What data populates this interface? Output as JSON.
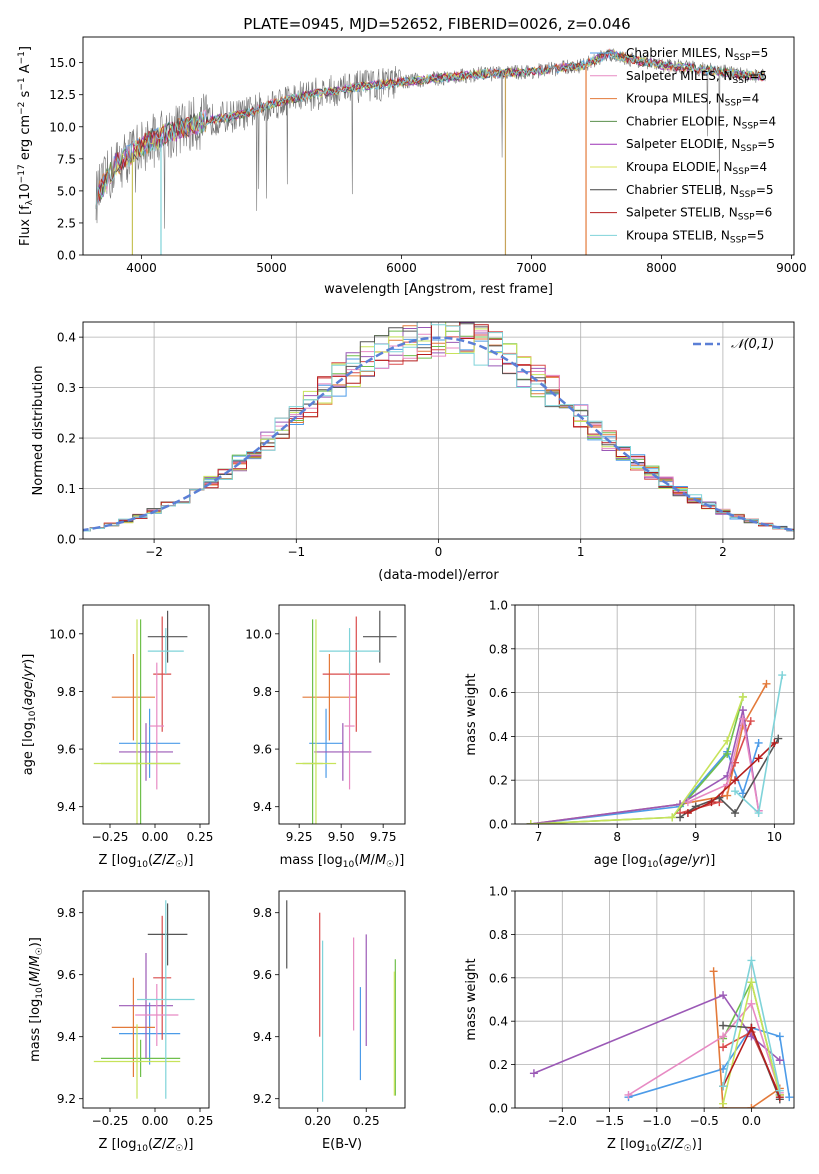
{
  "figure": {
    "title": "PLATE=0945, MJD=52652, FIBERID=0026, z=0.046"
  },
  "series_colors": [
    "#4c9be8",
    "#e37a3a",
    "#6fbf4c",
    "#d94b4b",
    "#9b59b6",
    "#e78ac3",
    "#c7e35a",
    "#555555",
    "#b51d1d",
    "#7fd3d9"
  ],
  "chart_data": [
    {
      "id": "spectrum",
      "type": "line",
      "xlabel": "wavelength [Angstrom, rest frame]",
      "ylabel": "Flux [f_λ 10^-17 erg cm^-2 s^-1 A^-1]",
      "xlim": [
        3550,
        9020
      ],
      "ylim": [
        0,
        17
      ],
      "xticks": [
        4000,
        5000,
        6000,
        7000,
        8000,
        9000
      ],
      "yticks": [
        0.0,
        2.5,
        5.0,
        7.5,
        10.0,
        12.5,
        15.0
      ],
      "legend_position": "right",
      "series": [
        {
          "name": "Chabrier MILES, N_SSP=5",
          "color": "#4c9be8"
        },
        {
          "name": "Salpeter MILES, N_SSP=5",
          "color": "#e78ac3"
        },
        {
          "name": "Kroupa MILES, N_SSP=4",
          "color": "#e37a3a"
        },
        {
          "name": "Chabrier ELODIE, N_SSP=4",
          "color": "#5a8f4c"
        },
        {
          "name": "Salpeter ELODIE, N_SSP=5",
          "color": "#9b30b6"
        },
        {
          "name": "Kroupa ELODIE, N_SSP=4",
          "color": "#d8e35a"
        },
        {
          "name": "Chabrier STELIB, N_SSP=5",
          "color": "#444444"
        },
        {
          "name": "Salpeter STELIB, N_SSP=6",
          "color": "#b51d1d"
        },
        {
          "name": "Kroupa STELIB, N_SSP=5",
          "color": "#7fd3d9"
        }
      ],
      "continuum": {
        "x": [
          3650,
          3800,
          4000,
          4200,
          4500,
          4800,
          5000,
          5300,
          5600,
          6000,
          6300,
          6600,
          7000,
          7400,
          7600,
          7800,
          8000,
          8300,
          8600,
          8800
        ],
        "y": [
          4.5,
          7.0,
          8.5,
          9.5,
          10.5,
          11.0,
          11.8,
          12.5,
          13.0,
          13.5,
          13.8,
          14.1,
          14.3,
          14.8,
          15.7,
          15.2,
          14.8,
          14.5,
          14.1,
          13.9
        ]
      }
    },
    {
      "id": "residuals",
      "type": "histogram",
      "xlabel": "(data-model)/error",
      "ylabel": "Normed distribution",
      "xlim": [
        -2.5,
        2.5
      ],
      "ylim": [
        0,
        0.43
      ],
      "xticks": [
        -2,
        -1,
        0,
        1,
        2
      ],
      "yticks": [
        0.0,
        0.1,
        0.2,
        0.3,
        0.4
      ],
      "legend": "𝒩(0,1)",
      "gaussian_color": "#5b7fd6",
      "grid": true
    },
    {
      "id": "age_vs_Z",
      "type": "errorbar",
      "xlabel": "Z [log10(Z/Z☉)]",
      "ylabel": "age  [log10(age/yr)]",
      "xlim": [
        -0.4,
        0.3
      ],
      "ylim": [
        9.34,
        10.1
      ],
      "xticks": [
        -0.25,
        0.0,
        0.25
      ],
      "yticks": [
        9.4,
        9.6,
        9.8,
        10.0
      ],
      "points": [
        {
          "x": -0.03,
          "y": 9.62,
          "xerr": 0.17,
          "yerr": 0.12,
          "color": "#4c9be8"
        },
        {
          "x": -0.12,
          "y": 9.78,
          "xerr": 0.12,
          "yerr": 0.15,
          "color": "#e37a3a"
        },
        {
          "x": -0.08,
          "y": 9.55,
          "xerr": 0.22,
          "yerr": 0.5,
          "color": "#6fbf4c"
        },
        {
          "x": 0.04,
          "y": 9.86,
          "xerr": 0.05,
          "yerr": 0.2,
          "color": "#d94b4b"
        },
        {
          "x": -0.05,
          "y": 9.59,
          "xerr": 0.15,
          "yerr": 0.1,
          "color": "#9b59b6"
        },
        {
          "x": 0.01,
          "y": 9.68,
          "xerr": 0.04,
          "yerr": 0.22,
          "color": "#e78ac3"
        },
        {
          "x": -0.1,
          "y": 9.55,
          "xerr": 0.24,
          "yerr": 0.5,
          "color": "#c7e35a"
        },
        {
          "x": 0.07,
          "y": 9.99,
          "xerr": 0.11,
          "yerr": 0.09,
          "color": "#555555"
        },
        {
          "x": 0.06,
          "y": 9.94,
          "xerr": 0.1,
          "yerr": 0.08,
          "color": "#7fd3d9"
        }
      ]
    },
    {
      "id": "age_vs_mass",
      "type": "errorbar",
      "xlabel": "mass [log10(M/M☉)]",
      "ylabel": "",
      "xlim": [
        9.13,
        9.88
      ],
      "ylim": [
        9.34,
        10.1
      ],
      "xticks": [
        9.25,
        9.5,
        9.75
      ],
      "yticks": [
        9.4,
        9.6,
        9.8,
        10.0
      ],
      "points": [
        {
          "x": 9.41,
          "y": 9.62,
          "xerr": 0.1,
          "yerr": 0.12,
          "color": "#4c9be8"
        },
        {
          "x": 9.43,
          "y": 9.78,
          "xerr": 0.16,
          "yerr": 0.15,
          "color": "#e37a3a"
        },
        {
          "x": 9.33,
          "y": 9.55,
          "xerr": 0.06,
          "yerr": 0.5,
          "color": "#6fbf4c"
        },
        {
          "x": 9.59,
          "y": 9.86,
          "xerr": 0.2,
          "yerr": 0.2,
          "color": "#d94b4b"
        },
        {
          "x": 9.51,
          "y": 9.59,
          "xerr": 0.17,
          "yerr": 0.1,
          "color": "#9b59b6"
        },
        {
          "x": 9.55,
          "y": 9.68,
          "xerr": 0.03,
          "yerr": 0.22,
          "color": "#e78ac3"
        },
        {
          "x": 9.35,
          "y": 9.55,
          "xerr": 0.12,
          "yerr": 0.5,
          "color": "#c7e35a"
        },
        {
          "x": 9.73,
          "y": 9.99,
          "xerr": 0.1,
          "yerr": 0.09,
          "color": "#555555"
        },
        {
          "x": 9.55,
          "y": 9.94,
          "xerr": 0.18,
          "yerr": 0.08,
          "color": "#7fd3d9"
        }
      ]
    },
    {
      "id": "weight_vs_age",
      "type": "line",
      "xlabel": "age  [log10(age/yr)]",
      "ylabel": "mass weight",
      "xlim": [
        6.7,
        10.25
      ],
      "ylim": [
        0,
        1.0
      ],
      "xticks": [
        7,
        8,
        9,
        10
      ],
      "yticks": [
        0.0,
        0.2,
        0.4,
        0.6,
        0.8,
        1.0
      ],
      "series": [
        {
          "color": "#4c9be8",
          "x": [
            6.9,
            8.8,
            9.4,
            9.6,
            9.8
          ],
          "y": [
            0.0,
            0.08,
            0.33,
            0.14,
            0.37
          ]
        },
        {
          "color": "#e37a3a",
          "x": [
            6.9,
            8.8,
            9.4,
            9.6,
            9.9
          ],
          "y": [
            0.0,
            0.09,
            0.13,
            0.45,
            0.64
          ]
        },
        {
          "color": "#6fbf4c",
          "x": [
            6.9,
            8.7,
            9.4,
            9.6
          ],
          "y": [
            0.0,
            0.03,
            0.32,
            0.58
          ]
        },
        {
          "color": "#d94b4b",
          "x": [
            8.8,
            9.3,
            9.5,
            9.7
          ],
          "y": [
            0.05,
            0.1,
            0.28,
            0.47
          ]
        },
        {
          "color": "#9b59b6",
          "x": [
            6.9,
            8.8,
            9.4,
            9.6,
            9.8
          ],
          "y": [
            0.0,
            0.09,
            0.22,
            0.52,
            0.06
          ]
        },
        {
          "color": "#e78ac3",
          "x": [
            8.9,
            9.4,
            9.6,
            9.8
          ],
          "y": [
            0.1,
            0.18,
            0.48,
            0.06
          ]
        },
        {
          "color": "#c7e35a",
          "x": [
            6.9,
            8.7,
            9.4,
            9.6
          ],
          "y": [
            0.0,
            0.03,
            0.38,
            0.58
          ]
        },
        {
          "color": "#555555",
          "x": [
            8.8,
            9.0,
            9.3,
            9.5,
            10.05
          ],
          "y": [
            0.03,
            0.08,
            0.12,
            0.05,
            0.39
          ]
        },
        {
          "color": "#b51d1d",
          "x": [
            8.9,
            9.2,
            9.5,
            9.8,
            10.0
          ],
          "y": [
            0.05,
            0.1,
            0.2,
            0.3,
            0.37
          ]
        },
        {
          "color": "#7fd3d9",
          "x": [
            9.5,
            9.8,
            10.1
          ],
          "y": [
            0.15,
            0.05,
            0.68
          ]
        }
      ]
    },
    {
      "id": "mass_vs_Z",
      "type": "errorbar",
      "xlabel": "Z [log10(Z/Z☉)]",
      "ylabel": "mass [log10(M/M☉)]",
      "xlim": [
        -0.4,
        0.3
      ],
      "ylim": [
        9.17,
        9.87
      ],
      "xticks": [
        -0.25,
        0.0,
        0.25
      ],
      "yticks": [
        9.2,
        9.4,
        9.6,
        9.8
      ],
      "points": [
        {
          "x": -0.03,
          "y": 9.41,
          "xerr": 0.17,
          "yerr": 0.1,
          "color": "#4c9be8"
        },
        {
          "x": -0.12,
          "y": 9.43,
          "xerr": 0.12,
          "yerr": 0.16,
          "color": "#e37a3a"
        },
        {
          "x": -0.08,
          "y": 9.33,
          "xerr": 0.22,
          "yerr": 0.06,
          "color": "#6fbf4c"
        },
        {
          "x": 0.04,
          "y": 9.59,
          "xerr": 0.05,
          "yerr": 0.2,
          "color": "#d94b4b"
        },
        {
          "x": -0.05,
          "y": 9.5,
          "xerr": 0.15,
          "yerr": 0.17,
          "color": "#9b59b6"
        },
        {
          "x": 0.01,
          "y": 9.47,
          "xerr": 0.12,
          "yerr": 0.1,
          "color": "#e78ac3"
        },
        {
          "x": -0.1,
          "y": 9.32,
          "xerr": 0.24,
          "yerr": 0.12,
          "color": "#c7e35a"
        },
        {
          "x": 0.07,
          "y": 9.73,
          "xerr": 0.11,
          "yerr": 0.1,
          "color": "#555555"
        },
        {
          "x": 0.06,
          "y": 9.52,
          "xerr": 0.16,
          "yerr": 0.32,
          "color": "#7fd3d9"
        }
      ]
    },
    {
      "id": "mass_vs_EBV",
      "type": "errorbar",
      "xlabel": "E(B-V)",
      "ylabel": "",
      "xlim": [
        0.16,
        0.29
      ],
      "ylim": [
        9.17,
        9.87
      ],
      "xticks": [
        0.2,
        0.25
      ],
      "yticks": [
        9.2,
        9.4,
        9.6,
        9.8
      ],
      "points": [
        {
          "x": 0.244,
          "y": 9.41,
          "yerr": 0.15,
          "color": "#4c9be8"
        },
        {
          "x": 0.202,
          "y": 9.6,
          "yerr": 0.2,
          "color": "#d94b4b"
        },
        {
          "x": 0.237,
          "y": 9.57,
          "yerr": 0.15,
          "color": "#e78ac3"
        },
        {
          "x": 0.25,
          "y": 9.55,
          "yerr": 0.18,
          "color": "#9b59b6"
        },
        {
          "x": 0.28,
          "y": 9.43,
          "yerr": 0.22,
          "color": "#6fbf4c"
        },
        {
          "x": 0.279,
          "y": 9.41,
          "yerr": 0.2,
          "color": "#c7e35a"
        },
        {
          "x": 0.168,
          "y": 9.73,
          "yerr": 0.11,
          "color": "#555555"
        },
        {
          "x": 0.205,
          "y": 9.45,
          "yerr": 0.26,
          "color": "#7fd3d9"
        }
      ]
    },
    {
      "id": "weight_vs_Z",
      "type": "line",
      "xlabel": "Z [log10(Z/Z☉)]",
      "ylabel": "mass weight",
      "xlim": [
        -2.5,
        0.45
      ],
      "ylim": [
        0,
        1.0
      ],
      "xticks": [
        -2.0,
        -1.5,
        -1.0,
        -0.5,
        0.0
      ],
      "yticks": [
        0.0,
        0.2,
        0.4,
        0.6,
        0.8,
        1.0
      ],
      "series": [
        {
          "color": "#4c9be8",
          "x": [
            -1.3,
            -0.3,
            0.0,
            0.3,
            0.4
          ],
          "y": [
            0.05,
            0.18,
            0.37,
            0.33,
            0.05
          ]
        },
        {
          "color": "#e37a3a",
          "x": [
            -0.4,
            -0.3,
            0.0,
            0.3
          ],
          "y": [
            0.63,
            0.0,
            0.0,
            0.09
          ]
        },
        {
          "color": "#6fbf4c",
          "x": [
            -0.3,
            0.0,
            0.3
          ],
          "y": [
            0.32,
            0.58,
            0.06
          ]
        },
        {
          "color": "#d94b4b",
          "x": [
            -0.3,
            0.0,
            0.3
          ],
          "y": [
            0.28,
            0.35,
            0.06
          ]
        },
        {
          "color": "#9b59b6",
          "x": [
            -2.3,
            -0.3,
            0.0,
            0.3
          ],
          "y": [
            0.16,
            0.52,
            0.33,
            0.22
          ]
        },
        {
          "color": "#e78ac3",
          "x": [
            -1.3,
            -0.3,
            0.0,
            0.3
          ],
          "y": [
            0.06,
            0.33,
            0.48,
            0.07
          ]
        },
        {
          "color": "#c7e35a",
          "x": [
            -0.3,
            0.0,
            0.3
          ],
          "y": [
            0.02,
            0.58,
            0.06
          ]
        },
        {
          "color": "#555555",
          "x": [
            -0.3,
            0.0,
            0.3
          ],
          "y": [
            0.38,
            0.37,
            0.04
          ]
        },
        {
          "color": "#b51d1d",
          "x": [
            -0.3,
            0.0,
            0.3
          ],
          "y": [
            0.1,
            0.37,
            0.05
          ]
        },
        {
          "color": "#7fd3d9",
          "x": [
            -0.3,
            0.0,
            0.3
          ],
          "y": [
            0.1,
            0.68,
            0.08
          ]
        }
      ]
    }
  ]
}
